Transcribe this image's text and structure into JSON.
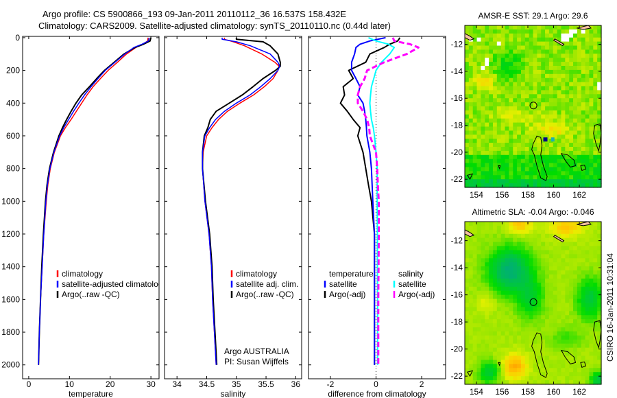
{
  "title": {
    "line1": "Argo profile: CS 5900866_193 09-Jan-2011 20110112_36 16.537S 158.432E",
    "line2": "Climatology: CARS2009. Satellite-adjusted climatology: synTS_20110110.nc (0.44d later)"
  },
  "chart_data": [
    {
      "type": "line",
      "xlabel": "temperature",
      "ylabel": "depth",
      "xlim": [
        -1.5,
        32
      ],
      "ylim": [
        2085,
        -8
      ],
      "xticks": [
        "0",
        "10",
        "20",
        "30"
      ],
      "yticks": [
        "0",
        "200",
        "400",
        "600",
        "800",
        "1000",
        "1200",
        "1400",
        "1600",
        "1800",
        "2000"
      ],
      "depth": [
        0,
        20,
        40,
        60,
        100,
        150,
        200,
        250,
        300,
        350,
        400,
        450,
        500,
        550,
        600,
        700,
        800,
        900,
        1000,
        1200,
        1400,
        1600,
        1800,
        2000
      ],
      "series": [
        {
          "name": "climatology",
          "color": "#ff0000",
          "values": [
            29.3,
            29.2,
            28.0,
            26.3,
            24.0,
            21.8,
            19.5,
            17.6,
            15.8,
            14.3,
            13.0,
            11.7,
            10.4,
            9.0,
            7.8,
            6.3,
            5.3,
            4.7,
            4.3,
            3.7,
            3.3,
            2.9,
            2.6,
            2.4
          ]
        },
        {
          "name": "satellite-adjusted climatology",
          "color": "#0000ff",
          "values": [
            29.6,
            29.4,
            27.8,
            25.8,
            23.6,
            21.2,
            18.8,
            17.0,
            15.3,
            13.7,
            12.3,
            11.0,
            9.8,
            8.6,
            7.6,
            6.2,
            5.2,
            4.6,
            4.2,
            3.7,
            3.3,
            2.9,
            2.6,
            2.4
          ]
        },
        {
          "name": "Argo(..raw -QC)",
          "color": "#000000",
          "values": [
            30.0,
            29.8,
            28.2,
            26.1,
            23.4,
            21.0,
            18.6,
            16.7,
            14.9,
            13.0,
            11.6,
            10.4,
            9.3,
            8.3,
            7.4,
            6.1,
            5.1,
            4.5,
            4.1,
            3.6,
            3.2,
            2.9,
            2.6,
            2.4
          ]
        }
      ]
    },
    {
      "type": "line",
      "xlabel": "salinity",
      "ylabel": "depth",
      "xlim": [
        33.79,
        36.1
      ],
      "ylim": [
        2085,
        -8
      ],
      "xticks": [
        "34",
        "34.5",
        "35",
        "35.5",
        "36"
      ],
      "depth": [
        0,
        10,
        25,
        50,
        100,
        150,
        175,
        200,
        250,
        300,
        350,
        400,
        450,
        500,
        550,
        600,
        700,
        800,
        1000,
        1200,
        1400,
        1600,
        1800,
        2000
      ],
      "series": [
        {
          "name": "climatology",
          "color": "#ff0000",
          "values": [
            34.8,
            34.8,
            34.95,
            35.14,
            35.43,
            35.65,
            35.72,
            35.7,
            35.62,
            35.47,
            35.29,
            35.06,
            34.85,
            34.7,
            34.59,
            34.5,
            34.44,
            34.43,
            34.47,
            34.54,
            34.58,
            34.6,
            34.63,
            34.66
          ]
        },
        {
          "name": "satellite adj. clim.",
          "color": "#0000ff",
          "values": [
            34.76,
            34.76,
            35.0,
            35.24,
            35.57,
            35.7,
            35.73,
            35.7,
            35.57,
            35.41,
            35.23,
            35.0,
            34.8,
            34.65,
            34.55,
            34.47,
            34.43,
            34.43,
            34.47,
            34.54,
            34.58,
            34.6,
            34.63,
            34.66
          ]
        },
        {
          "name": "Argo(..raw -QC)",
          "color": "#000000",
          "values": [
            35.0,
            35.0,
            35.45,
            35.57,
            35.7,
            35.74,
            35.74,
            35.66,
            35.45,
            35.28,
            35.1,
            34.88,
            34.66,
            34.56,
            34.52,
            34.46,
            34.43,
            34.43,
            34.48,
            34.55,
            34.59,
            34.61,
            34.64,
            34.67
          ]
        }
      ]
    },
    {
      "type": "line",
      "xlabel": "difference from climatology",
      "ylabel": "depth",
      "xlim": [
        -2.96,
        3.05
      ],
      "ylim": [
        2085,
        -8
      ],
      "xticks": [
        "-2",
        "0",
        "2"
      ],
      "depth": [
        0,
        20,
        40,
        60,
        100,
        150,
        200,
        250,
        300,
        350,
        400,
        450,
        500,
        550,
        600,
        700,
        800,
        900,
        1000,
        1200,
        1400,
        1600,
        1800,
        2000
      ],
      "legend_headers": [
        "temperature",
        "salinity"
      ],
      "series": [
        {
          "name": "satellite",
          "group": "temperature",
          "color": "#0000ff",
          "values": [
            0.42,
            -0.27,
            -0.7,
            -0.88,
            -0.94,
            -1.07,
            -1.07,
            -0.88,
            -0.7,
            -0.8,
            -0.57,
            -0.5,
            -0.45,
            -0.42,
            -0.4,
            -0.27,
            -0.2,
            -0.17,
            -0.14,
            -0.07,
            -0.07,
            -0.07,
            -0.07,
            -0.07
          ]
        },
        {
          "name": "Argo(-adj)",
          "group": "temperature",
          "color": "#000000",
          "values": [
            1.05,
            0.95,
            0.6,
            0.36,
            -0.27,
            -0.45,
            -1.2,
            -1.0,
            -1.44,
            -1.38,
            -1.56,
            -1.26,
            -1.0,
            -0.7,
            -0.8,
            -0.57,
            -0.45,
            -0.33,
            -0.2,
            -0.07,
            -0.07,
            -0.07,
            -0.07,
            -0.07
          ]
        },
        {
          "name": "satellite",
          "group": "salinity",
          "color": "#00ffff",
          "values": [
            -0.33,
            0.0,
            0.54,
            0.8,
            0.6,
            0.24,
            0.0,
            -0.1,
            -0.2,
            -0.24,
            -0.27,
            -0.24,
            -0.2,
            -0.12,
            -0.07,
            0.0,
            0.05,
            0.05,
            0.05,
            0.06,
            0.06,
            0.07,
            0.07,
            0.07
          ]
        },
        {
          "name": "Argo(-adj)",
          "group": "salinity",
          "color": "#ff00ff",
          "dashed": true,
          "values": [
            0.74,
            0.8,
            1.49,
            1.86,
            1.35,
            0.36,
            -0.39,
            -0.5,
            -0.7,
            -0.8,
            -0.8,
            -0.57,
            -0.39,
            -0.3,
            -0.27,
            0.0,
            0.05,
            0.08,
            0.12,
            0.12,
            0.11,
            0.1,
            0.1,
            0.1
          ]
        }
      ]
    }
  ],
  "annotation": {
    "line1": "Argo AUSTRALIA",
    "line2": "PI: Susan Wijffels"
  },
  "maps": [
    {
      "title": "AMSR-E SST: 29.1  Argo: 29.6",
      "lon_ticks": [
        "154",
        "156",
        "158",
        "160",
        "162"
      ],
      "lat_ticks": [
        "-12",
        "-14",
        "-16",
        "-18",
        "-20",
        "-22"
      ],
      "argo_position": {
        "lon": 158.432,
        "lat": -16.537
      }
    },
    {
      "title": "Altimetric SLA: -0.04  Argo: -0.046",
      "lon_ticks": [
        "154",
        "156",
        "158",
        "160",
        "162"
      ],
      "lat_ticks": [
        "-12",
        "-14",
        "-16",
        "-18",
        "-20",
        "-22"
      ],
      "argo_position": {
        "lon": 158.432,
        "lat": -16.537
      }
    }
  ],
  "footer": "CSIRO 16-Jan-2011 10:31:04"
}
